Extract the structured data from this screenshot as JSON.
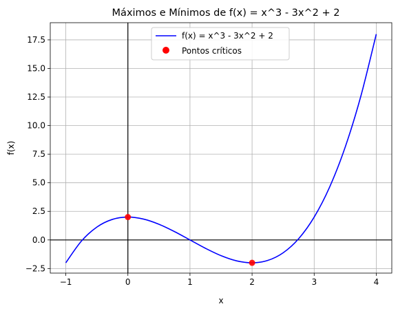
{
  "chart_data": {
    "type": "line",
    "title": "Máximos e Mínimos de f(x) = x^3 - 3x^2 + 2",
    "xlabel": "x",
    "ylabel": "f(x)",
    "xlim": [
      -1.25,
      4.25
    ],
    "ylim": [
      -2.9,
      19.0
    ],
    "x_ticks": [
      -1,
      0,
      1,
      2,
      3,
      4
    ],
    "x_tick_labels": [
      "−1",
      "0",
      "1",
      "2",
      "3",
      "4"
    ],
    "y_ticks": [
      -2.5,
      0.0,
      2.5,
      5.0,
      7.5,
      10.0,
      12.5,
      15.0,
      17.5
    ],
    "y_tick_labels": [
      "−2.5",
      "0.0",
      "2.5",
      "5.0",
      "7.5",
      "10.0",
      "12.5",
      "15.0",
      "17.5"
    ],
    "grid": true,
    "reference_lines": {
      "x": 0,
      "y": 0
    },
    "legend_position": "top-center",
    "series": [
      {
        "name": "f(x) = x^3 - 3x^2 + 2",
        "type": "line",
        "color": "#0000ff",
        "x": [
          -1.0,
          -0.75,
          -0.5,
          -0.25,
          0.0,
          0.25,
          0.5,
          0.75,
          1.0,
          1.25,
          1.5,
          1.75,
          2.0,
          2.25,
          2.5,
          2.75,
          3.0,
          3.25,
          3.5,
          3.75,
          4.0
        ],
        "y": [
          -2.0,
          -0.109,
          1.125,
          1.797,
          2.0,
          1.828,
          1.375,
          0.734,
          0.0,
          -0.734,
          -1.375,
          -1.828,
          -2.0,
          -1.797,
          -1.125,
          0.109,
          2.0,
          4.641,
          8.125,
          12.547,
          18.0
        ]
      },
      {
        "name": "Pontos críticos",
        "type": "scatter",
        "color": "#ff0000",
        "x": [
          0,
          2
        ],
        "y": [
          2,
          -2
        ]
      }
    ]
  }
}
